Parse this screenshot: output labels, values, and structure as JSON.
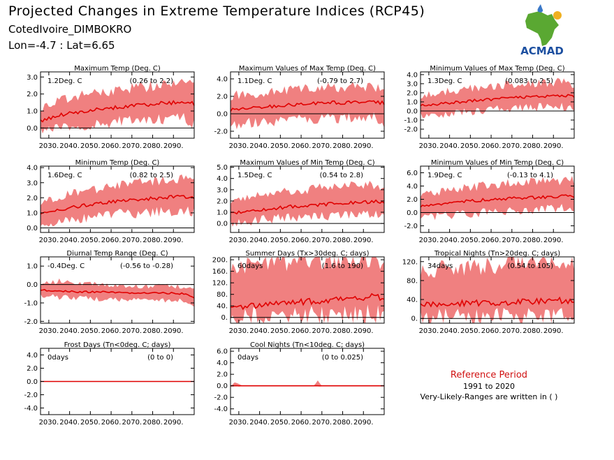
{
  "header": {
    "title": "Projected Changes in Extreme Temperature Indices (RCP45)",
    "subtitle": "CotedIvoire_DIMBOKRO",
    "coords": "Lon=-4.7 : Lat=6.65"
  },
  "logo": {
    "text": "ACMAD",
    "icon": "africa-map-logo-icon",
    "colors": {
      "africa": "#5aa832",
      "drop": "#3a78c8",
      "sun": "#f0b020",
      "text": "#1c4fa0"
    }
  },
  "colors": {
    "band": "#f08080",
    "line": "#e00000",
    "zero": "#000000"
  },
  "x_tick_labels": [
    "2030.",
    "2040.",
    "2050.",
    "2060.",
    "2070.",
    "2080.",
    "2090."
  ],
  "chart_data": [
    {
      "type": "area",
      "title": "Maximum Temp (Deg. C)",
      "annotation": "1.2Deg. C",
      "range_text": "(0.26 to 2.2)",
      "ylim": [
        -0.6,
        3.3
      ],
      "yticks": [
        0.0,
        1.0,
        2.0,
        3.0
      ],
      "ytick_labels": [
        "0.0",
        "1.0",
        "2.0",
        "3.0"
      ],
      "xlim": [
        2026,
        2100
      ],
      "x": [
        2026,
        2035,
        2045,
        2055,
        2065,
        2075,
        2085,
        2095,
        2100
      ],
      "median": [
        0.4,
        0.75,
        0.95,
        1.1,
        1.25,
        1.35,
        1.45,
        1.55,
        1.4
      ],
      "lower": [
        -0.1,
        0.0,
        0.1,
        0.25,
        0.4,
        0.5,
        0.55,
        0.6,
        0.3
      ],
      "upper": [
        1.2,
        1.6,
        1.9,
        2.1,
        2.3,
        2.45,
        2.5,
        2.6,
        2.5
      ]
    },
    {
      "type": "area",
      "title": "Maximum Values of Max Temp (Deg. C)",
      "annotation": "1.1Deg. C",
      "range_text": "(-0.79 to 2.7)",
      "ylim": [
        -2.8,
        4.8
      ],
      "yticks": [
        -2.0,
        0.0,
        2.0,
        4.0
      ],
      "ytick_labels": [
        "-2.0",
        "0.0",
        "2.0",
        "4.0"
      ],
      "xlim": [
        2026,
        2100
      ],
      "x": [
        2026,
        2035,
        2045,
        2055,
        2065,
        2075,
        2085,
        2095,
        2100
      ],
      "median": [
        0.4,
        0.7,
        0.85,
        1.0,
        1.15,
        1.25,
        1.35,
        1.4,
        1.2
      ],
      "lower": [
        -1.3,
        -1.0,
        -0.9,
        -0.7,
        -0.6,
        -0.5,
        -0.4,
        -0.4,
        -1.6
      ],
      "upper": [
        2.0,
        2.3,
        2.6,
        2.7,
        2.9,
        3.0,
        3.1,
        3.2,
        3.0
      ]
    },
    {
      "type": "area",
      "title": "Minimum Values of Max Temp (Deg. C)",
      "annotation": "1.3Deg. C",
      "range_text": "(0.083 to 2.5)",
      "ylim": [
        -3.0,
        4.3
      ],
      "yticks": [
        -2.0,
        -1.0,
        0.0,
        1.0,
        2.0,
        3.0,
        4.0
      ],
      "ytick_labels": [
        "-2.0",
        "-1.0",
        "0.0",
        "1.0",
        "2.0",
        "3.0",
        "4.0"
      ],
      "xlim": [
        2026,
        2100
      ],
      "x": [
        2026,
        2035,
        2045,
        2055,
        2065,
        2075,
        2085,
        2095,
        2100
      ],
      "median": [
        0.6,
        0.8,
        1.0,
        1.2,
        1.35,
        1.5,
        1.6,
        1.7,
        1.6
      ],
      "lower": [
        -0.4,
        -0.6,
        -0.2,
        0.0,
        0.2,
        0.3,
        0.4,
        0.5,
        0.3
      ],
      "upper": [
        1.6,
        2.0,
        2.3,
        2.6,
        2.8,
        3.0,
        3.1,
        3.2,
        3.0
      ]
    },
    {
      "type": "area",
      "title": "Minimum Temp (Deg. C)",
      "annotation": "1.6Deg. C",
      "range_text": "(0.82 to 2.5)",
      "ylim": [
        -0.3,
        4.1
      ],
      "yticks": [
        0.0,
        1.0,
        2.0,
        3.0,
        4.0
      ],
      "ytick_labels": [
        "0.0",
        "1.0",
        "2.0",
        "3.0",
        "4.0"
      ],
      "xlim": [
        2026,
        2100
      ],
      "x": [
        2026,
        2035,
        2045,
        2055,
        2065,
        2075,
        2085,
        2095,
        2100
      ],
      "median": [
        0.9,
        1.2,
        1.45,
        1.65,
        1.8,
        1.9,
        2.0,
        2.1,
        2.0
      ],
      "lower": [
        0.2,
        0.4,
        0.6,
        0.8,
        0.95,
        1.0,
        1.1,
        1.2,
        1.1
      ],
      "upper": [
        1.7,
        2.1,
        2.4,
        2.6,
        2.8,
        3.0,
        3.1,
        3.2,
        3.1
      ]
    },
    {
      "type": "area",
      "title": "Maximum Values of Min Temp (Deg. C)",
      "annotation": "1.5Deg. C",
      "range_text": "(0.54 to 2.8)",
      "ylim": [
        -0.8,
        5.1
      ],
      "yticks": [
        0.0,
        1.0,
        2.0,
        3.0,
        4.0,
        5.0
      ],
      "ytick_labels": [
        "0.0",
        "1.0",
        "2.0",
        "3.0",
        "4.0",
        "5.0"
      ],
      "xlim": [
        2026,
        2100
      ],
      "x": [
        2026,
        2035,
        2045,
        2055,
        2065,
        2075,
        2085,
        2095,
        2100
      ],
      "median": [
        0.9,
        1.1,
        1.3,
        1.5,
        1.6,
        1.75,
        1.85,
        1.95,
        1.9
      ],
      "lower": [
        0.0,
        0.2,
        0.4,
        0.5,
        0.6,
        0.7,
        0.8,
        0.9,
        0.7
      ],
      "upper": [
        2.0,
        2.4,
        2.7,
        2.9,
        3.1,
        3.2,
        3.3,
        3.4,
        3.3
      ]
    },
    {
      "type": "area",
      "title": "Minimum Values of Min Temp (Deg. C)",
      "annotation": "1.9Deg. C",
      "range_text": "(-0.13 to 4.1)",
      "ylim": [
        -3.0,
        7.0
      ],
      "yticks": [
        -2.0,
        0.0,
        2.0,
        4.0,
        6.0
      ],
      "ytick_labels": [
        "-2.0",
        "0.0",
        "2.0",
        "4.0",
        "6.0"
      ],
      "xlim": [
        2026,
        2100
      ],
      "x": [
        2026,
        2035,
        2045,
        2055,
        2065,
        2075,
        2085,
        2095,
        2100
      ],
      "median": [
        1.0,
        1.3,
        1.6,
        1.85,
        2.0,
        2.2,
        2.3,
        2.5,
        2.4
      ],
      "lower": [
        -0.8,
        -0.5,
        -0.3,
        0.0,
        0.2,
        0.4,
        0.6,
        0.7,
        0.5
      ],
      "upper": [
        2.8,
        3.2,
        3.6,
        4.0,
        4.3,
        4.5,
        4.7,
        4.9,
        4.8
      ]
    },
    {
      "type": "area",
      "title": "Diurnal Temp Range (Deg. C)",
      "annotation": "-0.4Deg. C",
      "range_text": "(-0.56 to -0.28)",
      "ylim": [
        -2.1,
        1.5
      ],
      "yticks": [
        -2.0,
        -1.0,
        0.0,
        1.0
      ],
      "ytick_labels": [
        "-2.0",
        "-1.0",
        "0.0",
        "1.0"
      ],
      "xlim": [
        2026,
        2100
      ],
      "x": [
        2026,
        2035,
        2045,
        2055,
        2065,
        2075,
        2085,
        2095,
        2100
      ],
      "median": [
        -0.3,
        -0.35,
        -0.4,
        -0.4,
        -0.45,
        -0.45,
        -0.45,
        -0.5,
        -0.7
      ],
      "lower": [
        -0.6,
        -0.7,
        -0.75,
        -0.8,
        -0.8,
        -0.8,
        -0.85,
        -0.9,
        -1.4
      ],
      "upper": [
        0.0,
        0.2,
        0.1,
        0.0,
        -0.05,
        -0.1,
        -0.1,
        -0.1,
        -0.3
      ]
    },
    {
      "type": "area",
      "title": "Summer Days (Tx>30deg. C; days)",
      "annotation": "60days",
      "range_text": "(1.6 to 190)",
      "ylim": [
        -20,
        210
      ],
      "yticks": [
        0,
        40,
        80,
        120,
        160,
        200
      ],
      "ytick_labels": [
        "0.",
        "40.",
        "80.",
        "120.",
        "160.",
        "200."
      ],
      "xlim": [
        2026,
        2100
      ],
      "x": [
        2026,
        2035,
        2045,
        2055,
        2065,
        2075,
        2085,
        2095,
        2100
      ],
      "median": [
        35,
        40,
        45,
        50,
        55,
        60,
        65,
        72,
        68
      ],
      "lower": [
        0,
        2,
        3,
        5,
        5,
        8,
        10,
        12,
        10
      ],
      "upper": [
        170,
        185,
        190,
        195,
        200,
        200,
        200,
        200,
        200
      ]
    },
    {
      "type": "area",
      "title": "Tropical Nights (Tn>20deg. C; days)",
      "annotation": "34days",
      "range_text": "(0.54 to 105)",
      "ylim": [
        -10,
        130
      ],
      "yticks": [
        0,
        40,
        80,
        120
      ],
      "ytick_labels": [
        "0.",
        "40.",
        "80.",
        "120."
      ],
      "xlim": [
        2026,
        2100
      ],
      "x": [
        2026,
        2035,
        2045,
        2055,
        2065,
        2075,
        2085,
        2095,
        2100
      ],
      "median": [
        28,
        30,
        32,
        33,
        34,
        35,
        37,
        38,
        37
      ],
      "lower": [
        2,
        3,
        3,
        4,
        4,
        5,
        5,
        6,
        5
      ],
      "upper": [
        100,
        105,
        108,
        110,
        112,
        115,
        117,
        118,
        118
      ]
    },
    {
      "type": "area",
      "title": "Frost Days (Tn<0deg. C; days)",
      "annotation": "0days",
      "range_text": "(0 to 0)",
      "ylim": [
        -5.0,
        5.0
      ],
      "yticks": [
        -4.0,
        -2.0,
        0.0,
        2.0,
        4.0
      ],
      "ytick_labels": [
        "-4.0",
        "-2.0",
        "0.0",
        "2.0",
        "4.0"
      ],
      "xlim": [
        2026,
        2100
      ],
      "x": [
        2026,
        2100
      ],
      "median": [
        0,
        0
      ],
      "lower": [
        0,
        0
      ],
      "upper": [
        0,
        0
      ]
    },
    {
      "type": "area",
      "title": "Cool Nights (Tn<10deg. C; days)",
      "annotation": "0days",
      "range_text": "(0 to 0.025)",
      "ylim": [
        -5.0,
        6.5
      ],
      "yticks": [
        -4.0,
        -2.0,
        0.0,
        2.0,
        4.0,
        6.0
      ],
      "ytick_labels": [
        "-4.0",
        "-2.0",
        "0.0",
        "2.0",
        "4.0",
        "6.0"
      ],
      "xlim": [
        2026,
        2100
      ],
      "x": [
        2026,
        2028,
        2030,
        2032,
        2066,
        2068,
        2070,
        2100
      ],
      "median": [
        0,
        0,
        0,
        0,
        0,
        0,
        0,
        0
      ],
      "lower": [
        0,
        0,
        0,
        0,
        0,
        0,
        0,
        0
      ],
      "upper": [
        0,
        0.6,
        0.3,
        0,
        0,
        0.9,
        0,
        0
      ]
    }
  ],
  "reference": {
    "title": "Reference Period",
    "years": "1991 to 2020",
    "note": "Very-Likely-Ranges are written in ( )"
  }
}
